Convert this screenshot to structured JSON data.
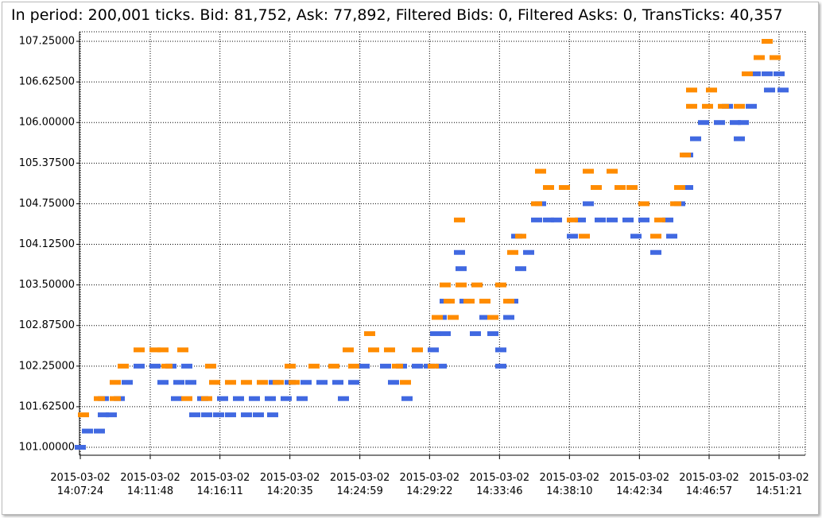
{
  "chart_data": {
    "type": "scatter",
    "title": "In period: 200,001 ticks. Bid: 81,752, Ask: 77,892, Filtered Bids: 0, Filtered Asks: 0, TransTicks: 40,357",
    "xlim": [
      50841,
      53580
    ],
    "ylim": [
      100.878,
      107.397
    ],
    "grid": true,
    "xticks": [
      {
        "value": 50844,
        "label": "2015-03-02 14:07:24"
      },
      {
        "value": 51108,
        "label": "2015-03-02 14:11:48"
      },
      {
        "value": 51371,
        "label": "2015-03-02 14:16:11"
      },
      {
        "value": 51635,
        "label": "2015-03-02 14:20:35"
      },
      {
        "value": 51899,
        "label": "2015-03-02 14:24:59"
      },
      {
        "value": 52162,
        "label": "2015-03-02 14:29:22"
      },
      {
        "value": 52426,
        "label": "2015-03-02 14:33:46"
      },
      {
        "value": 52690,
        "label": "2015-03-02 14:38:10"
      },
      {
        "value": 52954,
        "label": "2015-03-02 14:42:34"
      },
      {
        "value": 53217,
        "label": "2015-03-02 14:46:57"
      },
      {
        "value": 53481,
        "label": "2015-03-02 14:51:21"
      }
    ],
    "yticks": [
      {
        "value": 101.0,
        "label": "101.00000"
      },
      {
        "value": 101.625,
        "label": "101.62500"
      },
      {
        "value": 102.25,
        "label": "102.25000"
      },
      {
        "value": 102.875,
        "label": "102.87500"
      },
      {
        "value": 103.5,
        "label": "103.50000"
      },
      {
        "value": 104.125,
        "label": "104.12500"
      },
      {
        "value": 104.75,
        "label": "104.75000"
      },
      {
        "value": 105.375,
        "label": "105.37500"
      },
      {
        "value": 106.0,
        "label": "106.00000"
      },
      {
        "value": 106.625,
        "label": "106.62500"
      },
      {
        "value": 107.25,
        "label": "107.25000"
      }
    ],
    "series": [
      {
        "color": "#4169e1",
        "x": [
          50844,
          50871,
          50916,
          50931,
          50961,
          50931,
          50991,
          51021,
          51066,
          51126,
          51186,
          51246,
          51156,
          51216,
          51261,
          51207,
          51276,
          51321,
          51306,
          51366,
          51411,
          51471,
          51516,
          51570,
          51381,
          51441,
          51501,
          51561,
          51621,
          51681,
          51576,
          51636,
          51696,
          51756,
          51816,
          51876,
          51837,
          51915,
          51996,
          52056,
          52116,
          52161,
          52026,
          52077,
          52206,
          52176,
          52185,
          52221,
          52206,
          52221,
          52251,
          52275,
          52281,
          52296,
          52335,
          52371,
          52401,
          52431,
          52431,
          52461,
          52476,
          52506,
          52536,
          52491,
          52566,
          52581,
          52611,
          52641,
          52701,
          52731,
          52761,
          52806,
          52851,
          52911,
          52941,
          52971,
          53016,
          53061,
          53076,
          53106,
          53136,
          53136,
          53166,
          53196,
          53256,
          53286,
          53316,
          53346,
          53331,
          53376,
          53391,
          53436,
          53481,
          53445,
          53496
        ],
        "values": [
          101.0,
          101.25,
          101.25,
          101.5,
          101.5,
          101.75,
          101.75,
          102.0,
          102.25,
          102.25,
          102.25,
          102.25,
          102.0,
          102.0,
          102.0,
          101.75,
          101.5,
          101.5,
          101.75,
          101.5,
          101.5,
          101.5,
          101.5,
          101.5,
          101.75,
          101.75,
          101.75,
          101.75,
          101.75,
          101.75,
          102.0,
          102.0,
          102.0,
          102.0,
          102.0,
          102.0,
          101.75,
          102.25,
          102.25,
          102.25,
          102.25,
          102.25,
          102.0,
          101.75,
          102.25,
          102.5,
          102.75,
          102.75,
          103.0,
          103.25,
          103.0,
          104.0,
          103.75,
          103.25,
          102.75,
          103.0,
          102.75,
          102.5,
          102.25,
          103.0,
          103.25,
          103.75,
          104.0,
          104.25,
          104.5,
          104.75,
          104.5,
          104.5,
          104.25,
          104.5,
          104.75,
          104.5,
          104.5,
          104.5,
          104.25,
          104.5,
          104.0,
          104.5,
          104.25,
          104.75,
          105.0,
          105.5,
          105.75,
          106.0,
          106.0,
          106.25,
          106.0,
          106.0,
          105.75,
          106.25,
          106.75,
          106.75,
          106.75,
          106.5,
          106.5
        ]
      },
      {
        "color": "#ff8c00",
        "x": [
          50856,
          50916,
          50976,
          50976,
          51006,
          51066,
          51126,
          51156,
          51171,
          51231,
          51336,
          51246,
          51321,
          51351,
          51411,
          51471,
          51531,
          51591,
          51651,
          51636,
          51726,
          51801,
          51876,
          51855,
          51936,
          51951,
          52011,
          52041,
          52071,
          52116,
          52176,
          52191,
          52221,
          52236,
          52251,
          52275,
          52281,
          52311,
          52341,
          52371,
          52401,
          52431,
          52461,
          52476,
          52506,
          52566,
          52581,
          52611,
          52671,
          52701,
          52746,
          52761,
          52791,
          52851,
          52881,
          52926,
          52971,
          53016,
          53031,
          53091,
          53106,
          53127,
          53151,
          53151,
          53226,
          53211,
          53271,
          53331,
          53361,
          53406,
          53466,
          53436
        ],
        "values": [
          101.5,
          101.75,
          101.75,
          102.0,
          102.25,
          102.5,
          102.5,
          102.5,
          102.25,
          102.5,
          102.25,
          101.75,
          101.75,
          102.0,
          102.0,
          102.0,
          102.0,
          102.0,
          102.0,
          102.25,
          102.25,
          102.25,
          102.25,
          102.5,
          102.75,
          102.5,
          102.5,
          102.25,
          102.0,
          102.5,
          102.25,
          103.0,
          103.5,
          103.25,
          103.0,
          104.5,
          103.5,
          103.25,
          103.5,
          103.25,
          103.0,
          103.5,
          103.25,
          104.0,
          104.25,
          104.75,
          105.25,
          105.0,
          105.0,
          104.5,
          104.25,
          105.25,
          105.0,
          105.25,
          105.0,
          105.0,
          104.75,
          104.25,
          104.5,
          104.75,
          105.0,
          105.5,
          106.5,
          106.25,
          106.5,
          106.25,
          106.25,
          106.25,
          106.75,
          107.0,
          107.0,
          107.25
        ]
      }
    ]
  }
}
